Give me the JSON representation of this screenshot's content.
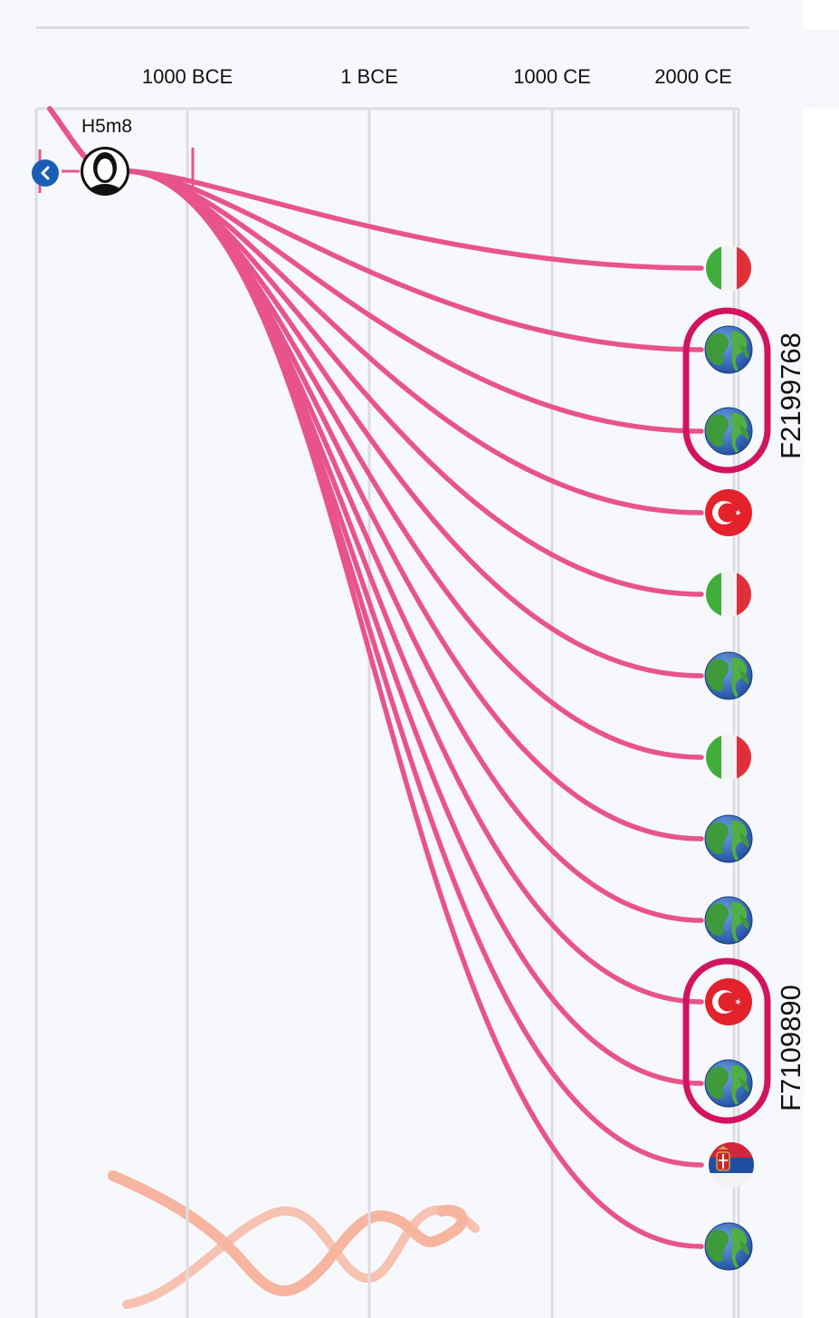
{
  "axis": {
    "ticks": [
      "1000 BCE",
      "1 BCE",
      "1000 CE",
      "2000 CE"
    ]
  },
  "root": {
    "label": "H5m8",
    "icon": "person-avatar-icon"
  },
  "nav": {
    "icon": "chevron-left-icon"
  },
  "leaves": [
    {
      "icon": "italy-flag-icon"
    },
    {
      "icon": "globe-icon"
    },
    {
      "icon": "globe-icon"
    },
    {
      "icon": "turkey-flag-icon"
    },
    {
      "icon": "italy-flag-icon"
    },
    {
      "icon": "globe-icon"
    },
    {
      "icon": "italy-flag-icon"
    },
    {
      "icon": "globe-icon"
    },
    {
      "icon": "globe-icon"
    },
    {
      "icon": "turkey-flag-icon"
    },
    {
      "icon": "globe-icon"
    },
    {
      "icon": "serbia-flag-icon"
    },
    {
      "icon": "globe-icon"
    }
  ],
  "groups": [
    {
      "label": "F2199768",
      "members": [
        1,
        2
      ]
    },
    {
      "label": "F7109890",
      "members": [
        9,
        10
      ]
    }
  ],
  "colors": {
    "branch": "#e8548a",
    "highlight": "#d21460",
    "grid": "#dcdde2",
    "watermark": "#f7a98f"
  },
  "watermark": {
    "icon": "dna-helix-logo"
  }
}
